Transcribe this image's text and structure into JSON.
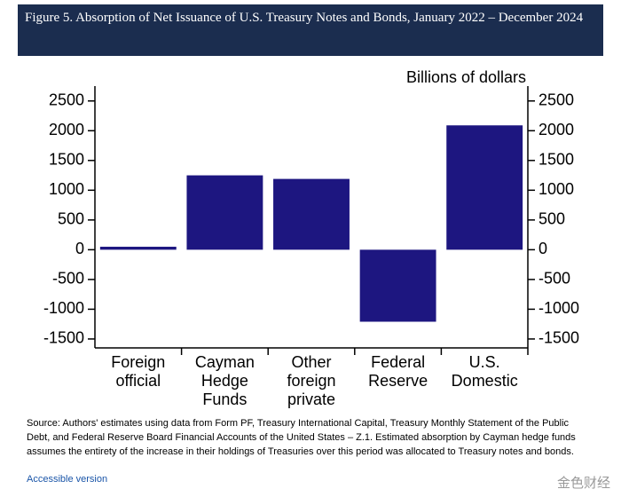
{
  "header": {
    "title": "Figure 5. Absorption of Net Issuance of U.S. Treasury Notes and Bonds, January 2022 – December 2024"
  },
  "chart_data": {
    "type": "bar",
    "unit_label": "Billions of dollars",
    "categories": [
      "Foreign official",
      "Cayman Hedge Funds",
      "Other foreign private",
      "Federal Reserve",
      "U.S. Domestic"
    ],
    "values": [
      50,
      1250,
      1190,
      -1210,
      2090
    ],
    "color": "#1d1680",
    "ylim": [
      -1650,
      2750
    ],
    "yticks": [
      -1500,
      -1000,
      -500,
      0,
      500,
      1000,
      1500,
      2000,
      2500
    ],
    "grid": false
  },
  "footer": {
    "source": "Source: Authors' estimates using data from Form PF, Treasury International Capital, Treasury Monthly Statement of the Public Debt, and Federal Reserve Board Financial Accounts of the United States – Z.1. Estimated absorption by Cayman hedge funds assumes the entirety of the increase in their holdings of Treasuries over this period was allocated to Treasury notes and bonds.",
    "link": "Accessible version",
    "watermark": "金色财经"
  }
}
